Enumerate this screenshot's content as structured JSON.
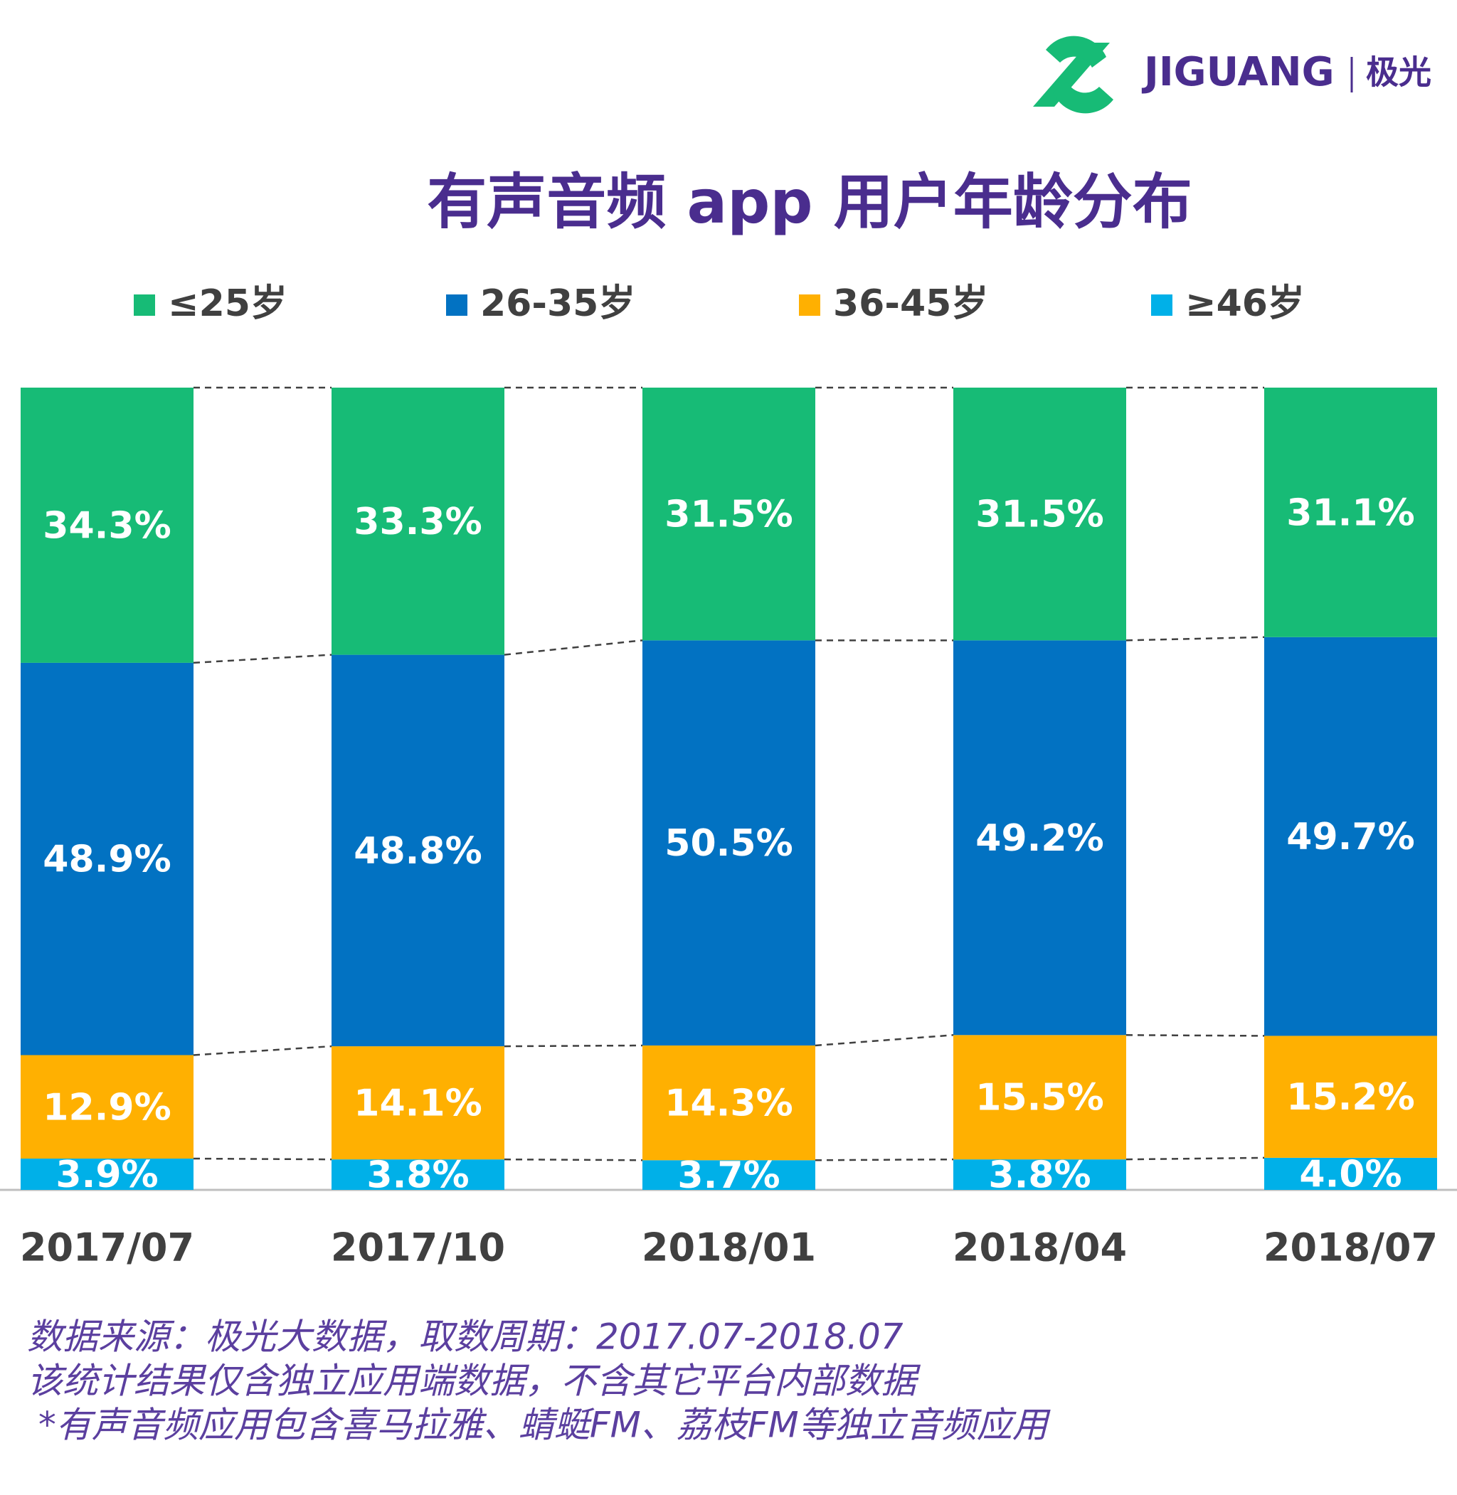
{
  "brand": {
    "name": "JIGUANG",
    "cn": "极光"
  },
  "chart_data": {
    "type": "stacked_bar",
    "title": "有声音频 app 用户年龄分布",
    "categories": [
      "2017/07",
      "2017/10",
      "2018/01",
      "2018/04",
      "2018/07"
    ],
    "series": [
      {
        "name": "≤25岁",
        "color": "#17bb76",
        "values": [
          34.3,
          33.3,
          31.5,
          31.5,
          31.1
        ],
        "value_labels": [
          "34.3%",
          "33.3%",
          "31.5%",
          "31.5%",
          "31.1%"
        ]
      },
      {
        "name": "26-35岁",
        "color": "#0272c2",
        "values": [
          48.9,
          48.8,
          50.5,
          49.2,
          49.7
        ],
        "value_labels": [
          "48.9%",
          "48.8%",
          "50.5%",
          "49.2%",
          "49.7%"
        ]
      },
      {
        "name": "36-45岁",
        "color": "#ffb001",
        "values": [
          12.9,
          14.1,
          14.3,
          15.5,
          15.2
        ],
        "value_labels": [
          "12.9%",
          "14.1%",
          "14.3%",
          "15.5%",
          "15.2%"
        ]
      },
      {
        "name": "≥46岁",
        "color": "#00b0e8",
        "values": [
          3.9,
          3.8,
          3.7,
          3.8,
          4.0
        ],
        "value_labels": [
          "3.9%",
          "3.8%",
          "3.7%",
          "3.8%",
          "4.0%"
        ]
      }
    ]
  },
  "notes": [
    "数据来源：极光大数据，取数周期：2017.07-2018.07",
    "该统计结果仅含独立应用端数据，不含其它平台内部数据",
    " *有声音频应用包含喜马拉雅、蜻蜓FM、荔枝FM等独立音频应用"
  ]
}
